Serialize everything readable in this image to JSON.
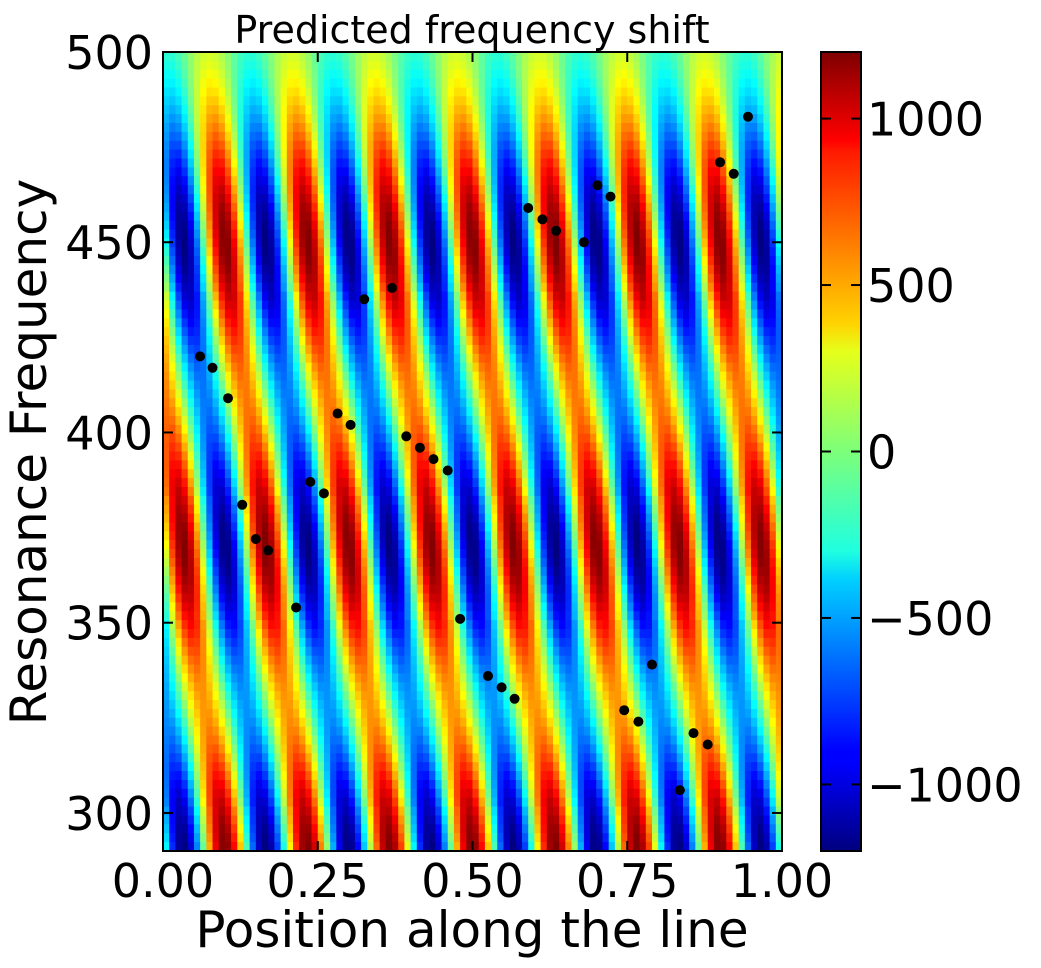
{
  "chart_data": {
    "type": "heatmap",
    "title": "Predicted frequency shift",
    "xlabel": "Position along the line",
    "ylabel": "Resonance Frequency",
    "xlim": [
      0.0,
      1.0
    ],
    "ylim": [
      290,
      500
    ],
    "x_ticks": [
      0.0,
      0.25,
      0.5,
      0.75,
      1.0
    ],
    "x_tick_labels": [
      "0.00",
      "0.25",
      "0.50",
      "0.75",
      "1.00"
    ],
    "y_ticks": [
      300,
      350,
      400,
      450,
      500
    ],
    "y_tick_labels": [
      "300",
      "350",
      "400",
      "450",
      "500"
    ],
    "colormap": "jet",
    "colorbar": {
      "range": [
        -1200,
        1200
      ],
      "ticks": [
        -1000,
        -500,
        0,
        500,
        1000
      ],
      "tick_labels": [
        "−1000",
        "−500",
        "0",
        "500",
        "1000"
      ]
    },
    "grid": false,
    "heatmap_model": {
      "description_units": "frequency-shift field, 4 stripes per band",
      "amplitude": 1200,
      "bands": [
        {
          "center": 450,
          "half_width": 42,
          "stripes": 7.5,
          "phase": 0.25,
          "tilt": 0.004
        },
        {
          "center": 370,
          "half_width": 42,
          "stripes": 7.5,
          "phase": 0.75,
          "tilt": 0.004
        },
        {
          "center": 290,
          "half_width": 38,
          "stripes": 7.5,
          "phase": 0.25,
          "tilt": 0.004
        }
      ]
    },
    "series": [
      {
        "marker": "circle",
        "color": "#000000",
        "points": [
          [
            0.06,
            420
          ],
          [
            0.08,
            417
          ],
          [
            0.105,
            409
          ],
          [
            0.128,
            381
          ],
          [
            0.15,
            372
          ],
          [
            0.17,
            369
          ],
          [
            0.215,
            354
          ],
          [
            0.238,
            387
          ],
          [
            0.26,
            384
          ],
          [
            0.282,
            405
          ],
          [
            0.303,
            402
          ],
          [
            0.325,
            435
          ],
          [
            0.37,
            438
          ],
          [
            0.393,
            399
          ],
          [
            0.415,
            396
          ],
          [
            0.437,
            393
          ],
          [
            0.46,
            390
          ],
          [
            0.48,
            351
          ],
          [
            0.525,
            336
          ],
          [
            0.547,
            333
          ],
          [
            0.568,
            330
          ],
          [
            0.59,
            459
          ],
          [
            0.613,
            456
          ],
          [
            0.635,
            453
          ],
          [
            0.68,
            450
          ],
          [
            0.702,
            465
          ],
          [
            0.723,
            462
          ],
          [
            0.745,
            327
          ],
          [
            0.768,
            324
          ],
          [
            0.79,
            339
          ],
          [
            0.835,
            306
          ],
          [
            0.857,
            321
          ],
          [
            0.88,
            318
          ],
          [
            0.9,
            471
          ],
          [
            0.922,
            468
          ],
          [
            0.945,
            483
          ]
        ]
      }
    ]
  }
}
